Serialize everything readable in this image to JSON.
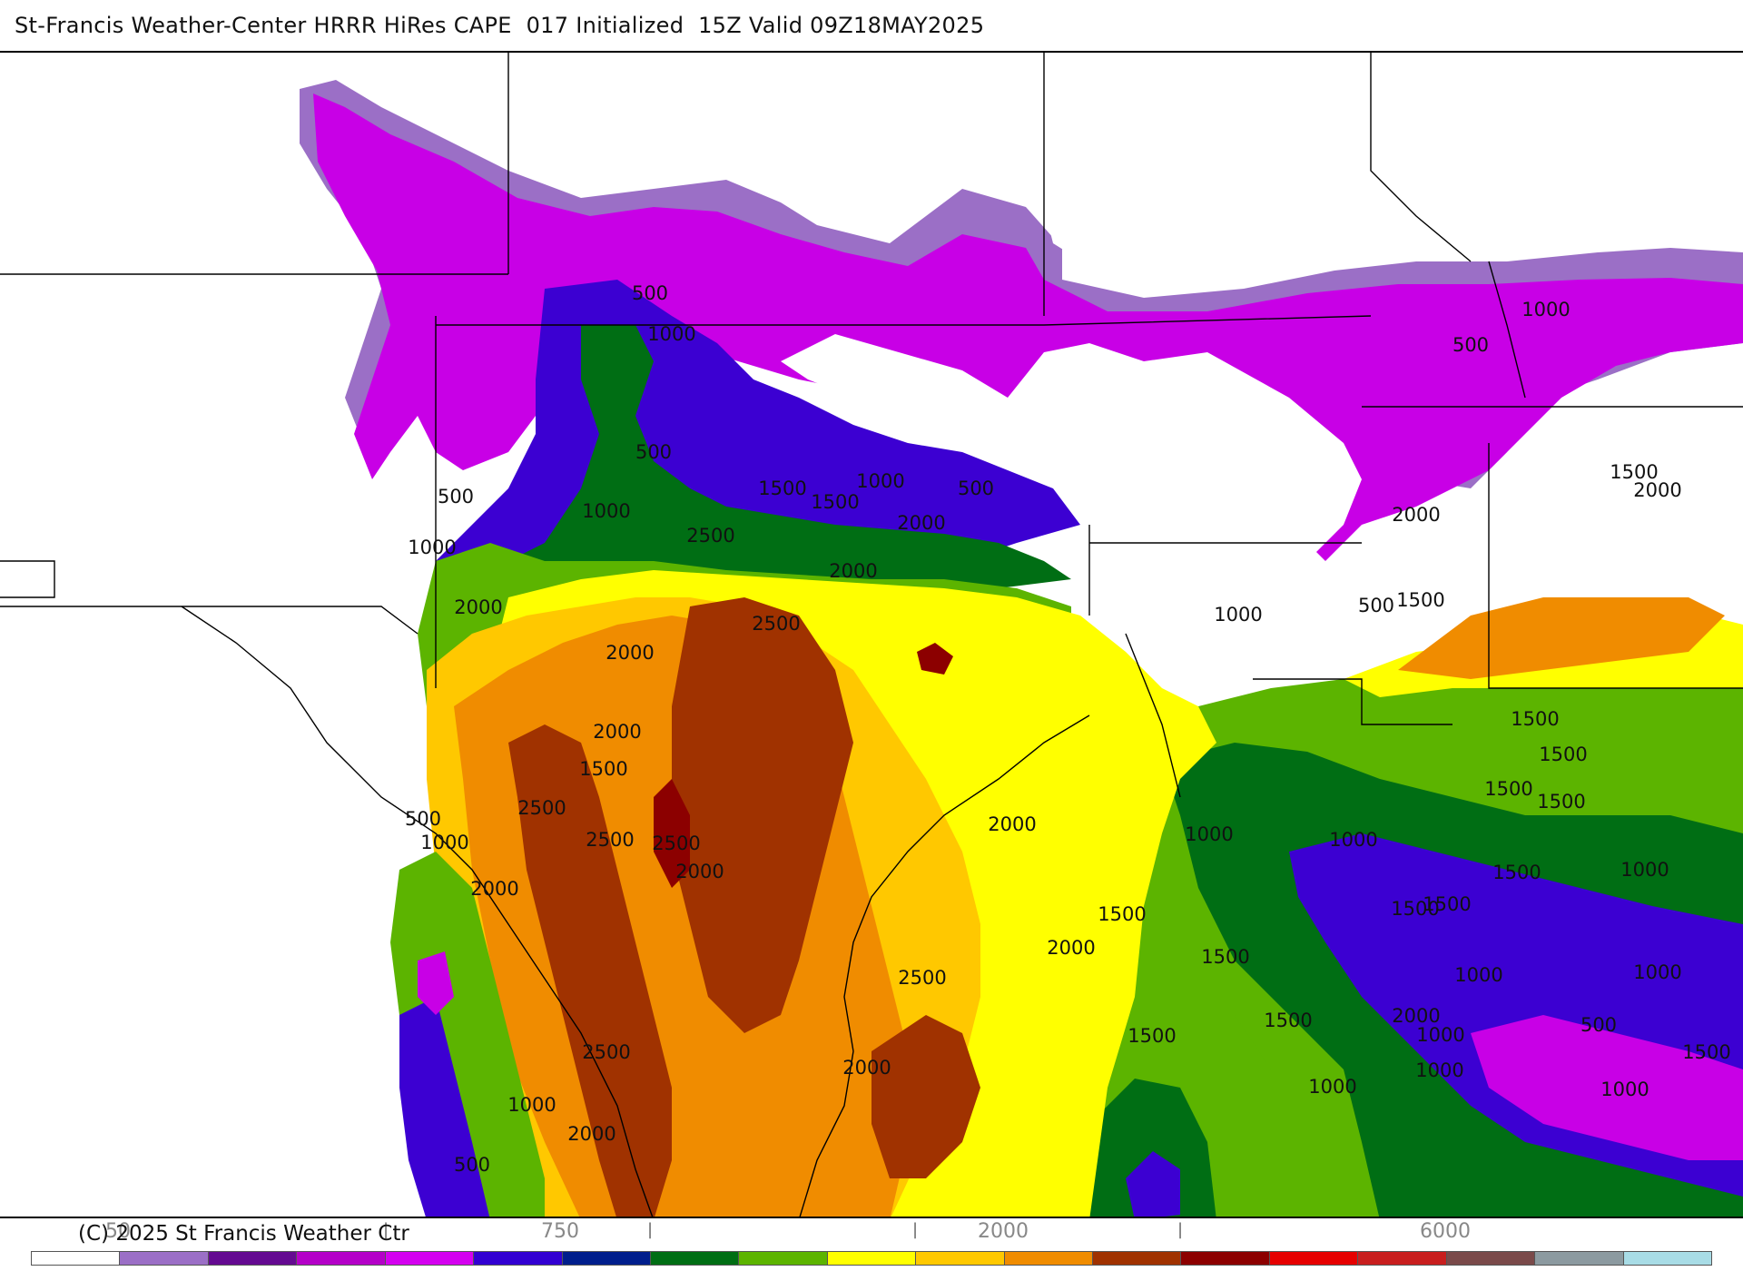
{
  "header": {
    "title": "St-Francis Weather-Center HRRR HiRes CAPE  017 Initialized  15Z Valid 09Z18MAY2025"
  },
  "footer": {
    "copyright": "(C) 2025 St Francis Weather Ctr",
    "colorbar_ticks": [
      "50",
      "750",
      "2000",
      "6000"
    ],
    "colorbar_colors": [
      "#ffffff",
      "#9b6fc6",
      "#640a91",
      "#b400c8",
      "#d400f0",
      "#3200d2",
      "#001e8c",
      "#006e14",
      "#5cb400",
      "#ffff00",
      "#ffc800",
      "#f08c00",
      "#a03200",
      "#8c0000",
      "#e60000",
      "#c81e1e",
      "#7a4a4a",
      "#8c9aa0",
      "#a8dce6"
    ]
  },
  "map": {
    "field": "CAPE",
    "colors": {
      "white": "#ffffff",
      "lavender": "#9b6fc6",
      "dark_purple": "#640a91",
      "magenta": "#c800e6",
      "blue_violet": "#3c00d2",
      "navy": "#0a1e8c",
      "dark_green": "#006e14",
      "green": "#5cb400",
      "yellow": "#ffff00",
      "gold": "#ffc800",
      "orange": "#f08c00",
      "rust": "#a03200",
      "dark_red": "#8c0000"
    },
    "contour_labels": [
      "500",
      "1000",
      "500",
      "500",
      "1500",
      "1000",
      "1000",
      "1500",
      "1000",
      "500",
      "2500",
      "2000",
      "2000",
      "2000",
      "2500",
      "2000",
      "2000",
      "1500",
      "500",
      "1000",
      "2500",
      "2500",
      "2500",
      "2000",
      "2000",
      "2000",
      "1500",
      "1000",
      "500",
      "1000",
      "1500",
      "1000",
      "500",
      "2000",
      "1500",
      "2000",
      "1500",
      "1500",
      "1500",
      "1500",
      "1000",
      "1500",
      "1500",
      "1500",
      "1000",
      "2000",
      "1500",
      "1500",
      "1000",
      "1000",
      "2500",
      "2000",
      "1500",
      "2500",
      "2000",
      "1000",
      "500",
      "1000",
      "1500",
      "1000",
      "2000",
      "1000",
      "500",
      "1000"
    ]
  }
}
